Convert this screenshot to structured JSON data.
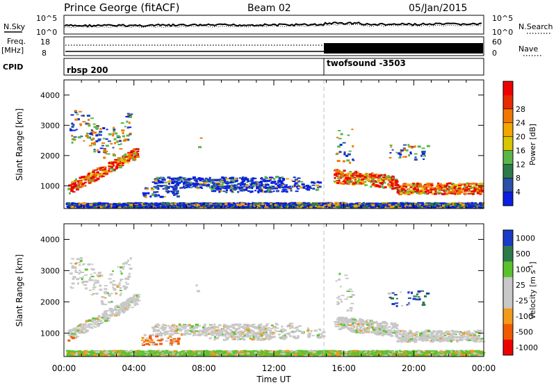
{
  "header": {
    "station": "Prince George (fitACF)",
    "beam": "Beam 02",
    "date": "05/Jan/2015"
  },
  "noise_panel": {
    "left_label": "N.Sky",
    "right_label": "N.Search",
    "left_ticks": [
      "10^5",
      "10^0"
    ],
    "right_ticks": [
      "10^5",
      "10^0"
    ]
  },
  "freq_panel": {
    "left_label_1": "Freq.",
    "left_label_2": "[MHz]",
    "right_label": "Nave",
    "left_ticks": [
      "18",
      "8"
    ],
    "right_ticks": [
      "60",
      "0"
    ]
  },
  "cpid_panel": {
    "label": "CPID",
    "modes": [
      {
        "name": "rbsp 200",
        "start_hour": 0
      },
      {
        "name": "twofsound -3503",
        "start_hour": 15
      }
    ]
  },
  "colors": {
    "power_scale": [
      "#0a1fe0",
      "#2a50a8",
      "#2e7a4a",
      "#5bb64a",
      "#d8c600",
      "#f3a500",
      "#f07800",
      "#e82a00",
      "#f00000"
    ],
    "velocity_scale": [
      "#ef0000",
      "#f05a00",
      "#f29a1a",
      "#c8c8c8",
      "#c8c8c8",
      "#5bc22e",
      "#2e7a4a",
      "#1a3ac8"
    ]
  },
  "chart_data": [
    {
      "type": "heatmap",
      "title": "",
      "ylabel": "Slant Range [km]",
      "xlim": [
        0,
        24
      ],
      "ylim": [
        250,
        4500
      ],
      "yticks": [
        1000,
        2000,
        3000,
        4000
      ],
      "colorbar": {
        "label": "Power [dB]",
        "range": [
          0,
          32
        ],
        "ticks": [
          4,
          8,
          12,
          16,
          20,
          24,
          28
        ]
      }
    },
    {
      "type": "heatmap",
      "title": "",
      "xlabel": "Time UT",
      "ylabel": "Slant Range [km]",
      "xlim": [
        0,
        24
      ],
      "ylim": [
        250,
        4500
      ],
      "xticks": [
        "00:00",
        "04:00",
        "08:00",
        "12:00",
        "16:00",
        "20:00",
        "00:00"
      ],
      "yticks": [
        1000,
        2000,
        3000,
        4000
      ],
      "colorbar": {
        "label": "Velocity [m s^-1]",
        "ticks": [
          "1000",
          "500",
          "100",
          "25",
          "-25",
          "-100",
          "-500",
          "-1000"
        ]
      }
    }
  ]
}
